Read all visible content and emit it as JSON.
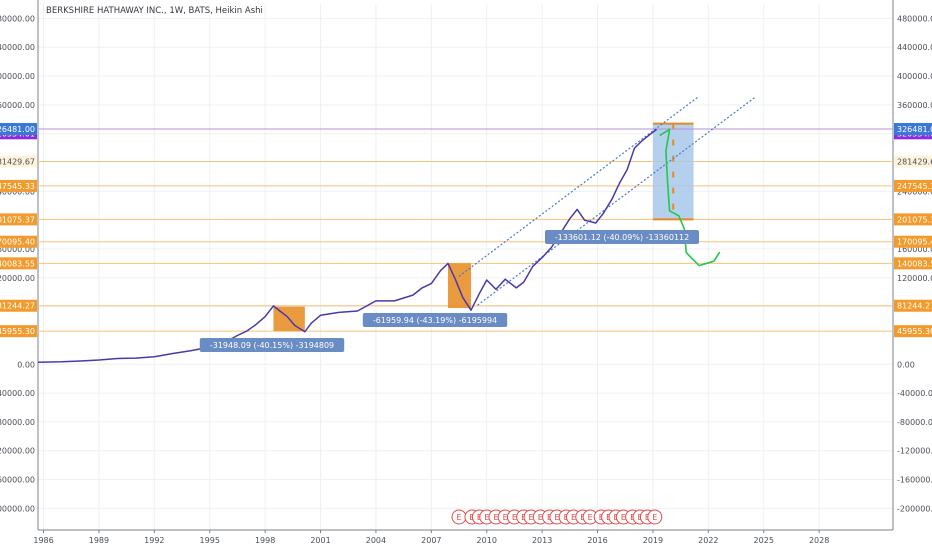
{
  "chart_data": {
    "type": "line",
    "title": "BERKSHIRE HATHAWAY INC., 1W, BATS, Heikin Ashi",
    "colors": {
      "price_line": "#4a3aa8",
      "horizontal_level": "#f7c37a",
      "level_label": "#f39a2c",
      "current_price_label": "#3a78d6",
      "close_line": "#b38fd9",
      "close_label": "#8a2be2",
      "drawdown_box": "#e68a1f",
      "projection_box": "#a8c8ea",
      "measure_label_bg": "#6a8cc4",
      "trend_line": "#4a7ac7",
      "hand_drawn_path": "#22c84a",
      "earnings_marker": "#e04a4a",
      "grid": "#eef0f4"
    },
    "ylim": [
      -230000,
      500000
    ],
    "xlim": [
      1985.7,
      2032.0
    ],
    "y_ticks": [
      480000,
      440000,
      400000,
      360000,
      320000,
      240000,
      160000,
      120000,
      80000,
      0,
      -40000,
      -80000,
      -120000,
      -160000,
      -200000
    ],
    "y_tick_labels": [
      "480000.00",
      "440000.00",
      "400000.00",
      "360000.00",
      "320000.00",
      "240000.00",
      "160000.00",
      "120000.00",
      "80000.00",
      "0.00",
      "-40000.00",
      "-80000.00",
      "-120000.00",
      "-160000.00",
      "-200000.00"
    ],
    "x_ticks": [
      1986,
      1989,
      1992,
      1995,
      1998,
      2001,
      2004,
      2007,
      2010,
      2013,
      2016,
      2019,
      2022,
      2025,
      2028
    ],
    "x_tick_labels": [
      "1986",
      "1989",
      "1992",
      "1995",
      "1998",
      "2001",
      "2004",
      "2007",
      "2010",
      "2013",
      "2016",
      "2019",
      "2022",
      "2025",
      "2028"
    ],
    "series": [
      {
        "x": [
          1985.7,
          1987,
          1988,
          1989,
          1990,
          1991,
          1992,
          1993,
          1994,
          1995,
          1996,
          1996.5,
          1997,
          1997.5,
          1998,
          1998.45,
          1998.8,
          1999.2,
          1999.6,
          2000.15,
          2000.5,
          2001,
          2002,
          2003,
          2004,
          2005,
          2006,
          2006.5,
          2007,
          2007.5,
          2007.9,
          2008.3,
          2008.7,
          2009.15,
          2009.6,
          2010,
          2010.5,
          2011,
          2011.6,
          2012,
          2012.5,
          2013,
          2013.5,
          2014,
          2014.5,
          2014.9,
          2015.3,
          2015.9,
          2016.3,
          2016.8,
          2017.2,
          2017.6,
          2018,
          2018.4,
          2018.8,
          2019.2
        ],
        "y": [
          2800,
          3500,
          4500,
          6000,
          8000,
          8500,
          10500,
          15000,
          19000,
          24000,
          33000,
          40000,
          46000,
          55000,
          66000,
          81000,
          74000,
          66000,
          54000,
          45000,
          57000,
          68000,
          72000,
          74000,
          88000,
          88000,
          96000,
          106000,
          112000,
          130000,
          140000,
          118000,
          93000,
          75000,
          98000,
          117000,
          104000,
          118000,
          106000,
          114000,
          136000,
          148000,
          162000,
          182000,
          202000,
          215000,
          200000,
          196000,
          209000,
          230000,
          252000,
          270000,
          300000,
          310000,
          318000,
          326000
        ]
      }
    ],
    "horizontal_levels": [
      {
        "value": 281429.67,
        "label": "281429.67"
      },
      {
        "value": 247545.33,
        "label": "247545.33"
      },
      {
        "value": 201075.37,
        "label": "201075.37"
      },
      {
        "value": 170095.4,
        "label": "170095.40"
      },
      {
        "value": 140083.55,
        "label": "140083.55"
      },
      {
        "value": 81244.27,
        "label": "81244.27"
      },
      {
        "value": 45955.3,
        "label": "45955.30"
      }
    ],
    "current_price": {
      "value": 326481.0,
      "label": "326481.00"
    },
    "close_level": {
      "value": 320554.01,
      "label": "320554.01"
    },
    "drawdowns": [
      {
        "x0": 1998.45,
        "x1": 2000.15,
        "y_top": 80000,
        "y_bottom": 45955.3,
        "label": "-31948.09 (-40.15%) -3194809"
      },
      {
        "x0": 2007.9,
        "x1": 2009.15,
        "y_top": 140083.55,
        "y_bottom": 78000,
        "label": "-61959.94 (-43.19%) -6195994"
      }
    ],
    "projection": {
      "x0": 2019.0,
      "x1": 2021.2,
      "y_top": 334000,
      "y_bottom": 201075.37,
      "label": "-133601.12 (-40.09%) -13360112"
    },
    "trend_lines": [
      {
        "x0": 2008.5,
        "y0": 122000,
        "x1": 2021.5,
        "y1": 372000
      },
      {
        "x0": 2009.5,
        "y0": 82000,
        "x1": 2024.5,
        "y1": 370000
      }
    ],
    "projection_path": [
      [
        2019.4,
        318000
      ],
      [
        2019.9,
        326000
      ],
      [
        2019.7,
        296000
      ],
      [
        2019.8,
        250000
      ],
      [
        2019.9,
        213000
      ],
      [
        2020.4,
        206000
      ],
      [
        2020.7,
        188000
      ],
      [
        2020.8,
        155000
      ],
      [
        2021.5,
        137000
      ],
      [
        2022.3,
        143000
      ],
      [
        2022.6,
        155000
      ]
    ],
    "earnings_markers": {
      "label": "E",
      "x": [
        2008.5,
        2009.2,
        2009.6,
        2010.0,
        2010.5,
        2011.0,
        2011.5,
        2012.0,
        2012.4,
        2012.9,
        2013.4,
        2013.8,
        2014.3,
        2014.7,
        2015.2,
        2015.6,
        2016.2,
        2016.6,
        2017.0,
        2017.4,
        2017.9,
        2018.3,
        2018.7,
        2019.1
      ]
    }
  }
}
